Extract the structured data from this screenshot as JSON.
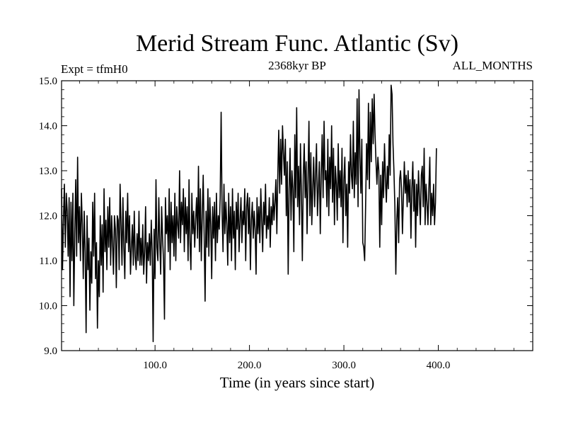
{
  "chart_data": {
    "type": "line",
    "title": "Merid Stream Func. Atlantic (Sv)",
    "subtitle_left": "Expt = tfmH0",
    "subtitle_center": "2368kyr BP",
    "subtitle_right": "ALL_MONTHS",
    "xlabel": "Time (in years since start)",
    "ylabel": "",
    "xlim": [
      1,
      500
    ],
    "ylim": [
      9.0,
      15.0
    ],
    "x_ticks": [
      100,
      200,
      300,
      400
    ],
    "x_tick_labels": [
      "100.0",
      "200.0",
      "300.0",
      "400.0"
    ],
    "y_ticks": [
      9,
      10,
      11,
      12,
      13,
      14,
      15
    ],
    "y_tick_labels": [
      "9.0",
      "10.0",
      "11.0",
      "12.0",
      "13.0",
      "14.0",
      "15.0"
    ],
    "series": [
      {
        "name": "Merid Stream Func. Atlantic",
        "x_start": 1,
        "x_step": 1,
        "values": [
          12.6,
          10.8,
          11.9,
          12.7,
          11.3,
          12.5,
          12.1,
          11.1,
          12.4,
          10.2,
          12.3,
          11.0,
          12.5,
          10.0,
          11.6,
          12.8,
          11.1,
          13.3,
          11.4,
          12.2,
          11.0,
          12.5,
          11.8,
          10.6,
          12.1,
          11.2,
          9.4,
          12.0,
          10.8,
          11.5,
          9.9,
          11.2,
          10.5,
          12.3,
          11.1,
          12.5,
          10.6,
          11.4,
          9.5,
          11.0,
          10.2,
          12.0,
          10.9,
          11.8,
          10.3,
          12.6,
          11.2,
          11.9,
          10.8,
          12.2,
          11.3,
          12.4,
          10.9,
          12.0,
          11.4,
          10.7,
          12.0,
          11.7,
          10.4,
          12.0,
          11.9,
          10.8,
          12.7,
          11.8,
          10.9,
          12.4,
          11.3,
          10.6,
          12.1,
          11.4,
          12.5,
          11.2,
          12.0,
          10.7,
          11.3,
          11.8,
          10.9,
          12.1,
          11.1,
          10.8,
          11.6,
          11.0,
          12.1,
          10.9,
          11.5,
          10.9,
          11.8,
          10.7,
          11.2,
          12.2,
          10.5,
          11.4,
          11.0,
          11.6,
          10.9,
          11.9,
          11.2,
          9.2,
          11.7,
          10.6,
          12.8,
          11.3,
          11.0,
          12.4,
          11.4,
          10.7,
          12.2,
          11.5,
          11.0,
          9.7,
          12.4,
          11.6,
          12.0,
          11.2,
          12.6,
          10.8,
          12.3,
          11.4,
          12.0,
          11.1,
          12.5,
          11.0,
          12.2,
          11.8,
          11.5,
          13.0,
          11.4,
          12.3,
          11.8,
          12.6,
          11.2,
          12.4,
          11.6,
          12.2,
          11.0,
          12.8,
          11.4,
          10.8,
          12.5,
          11.6,
          12.1,
          11.3,
          11.9,
          12.4,
          11.5,
          13.1,
          11.2,
          12.6,
          11.0,
          12.0,
          12.9,
          11.6,
          10.1,
          12.1,
          11.3,
          12.6,
          11.1,
          12.4,
          11.8,
          10.6,
          12.2,
          11.5,
          12.3,
          11.0,
          12.5,
          11.4,
          12.0,
          11.7,
          12.4,
          14.3,
          12.1,
          11.2,
          12.7,
          11.6,
          12.3,
          11.8,
          10.9,
          12.5,
          11.4,
          12.2,
          11.0,
          12.6,
          11.5,
          12.1,
          10.8,
          12.3,
          11.7,
          12.5,
          11.2,
          11.9,
          12.4,
          11.4,
          12.1,
          11.8,
          12.6,
          11.0,
          12.2,
          12.5,
          11.6,
          12.4,
          10.8,
          11.9,
          12.3,
          11.5,
          12.1,
          11.7,
          10.7,
          12.4,
          11.6,
          12.2,
          11.4,
          12.6,
          11.9,
          11.2,
          12.3,
          11.8,
          12.7,
          11.5,
          12.0,
          11.7,
          12.4,
          11.3,
          12.2,
          11.8,
          12.5,
          11.9,
          12.3,
          12.8,
          11.6,
          12.9,
          13.9,
          12.5,
          13.7,
          12.7,
          14.0,
          13.4,
          12.9,
          13.7,
          12.0,
          13.2,
          10.7,
          12.6,
          13.5,
          11.9,
          13.0,
          12.6,
          11.2,
          13.8,
          12.4,
          14.4,
          12.2,
          13.1,
          11.8,
          13.6,
          12.5,
          11.0,
          12.9,
          13.6,
          12.4,
          13.2,
          11.6,
          12.8,
          14.1,
          12.0,
          13.4,
          11.8,
          12.6,
          13.3,
          12.2,
          12.9,
          13.6,
          12.0,
          12.6,
          13.2,
          11.6,
          12.9,
          13.8,
          12.4,
          14.1,
          12.8,
          13.0,
          12.2,
          13.7,
          12.0,
          13.3,
          12.6,
          14.0,
          12.3,
          13.5,
          11.8,
          13.1,
          12.7,
          11.9,
          13.6,
          12.4,
          13.0,
          12.2,
          13.5,
          11.4,
          12.8,
          13.3,
          12.0,
          12.7,
          11.3,
          13.2,
          12.5,
          13.8,
          12.9,
          12.6,
          14.1,
          12.4,
          13.4,
          12.7,
          14.6,
          12.2,
          14.8,
          13.3,
          12.5,
          13.7,
          11.4,
          11.3,
          11.0,
          12.2,
          13.6,
          12.8,
          14.5,
          12.6,
          14.3,
          13.2,
          14.6,
          13.6,
          14.7,
          13.8,
          13.2,
          12.7,
          13.3,
          13.0,
          11.3,
          12.9,
          11.8,
          13.2,
          12.4,
          13.6,
          12.8,
          12.3,
          13.1,
          12.6,
          13.8,
          12.9,
          14.9,
          14.7,
          13.6,
          13.0,
          12.2,
          10.7,
          11.9,
          12.4,
          11.4,
          12.8,
          13.0,
          12.6,
          11.6,
          12.4,
          13.2,
          12.5,
          12.9,
          12.2,
          13.0,
          12.3,
          12.8,
          11.5,
          12.6,
          13.2,
          12.1,
          12.8,
          11.3,
          12.7,
          12.0,
          13.0,
          12.4,
          11.8,
          12.9,
          13.1,
          12.2,
          13.5,
          11.8,
          12.7,
          12.3,
          11.8,
          12.6,
          13.3,
          11.8,
          12.5,
          12.0,
          12.7,
          11.8,
          12.3,
          13.5
        ]
      }
    ]
  }
}
